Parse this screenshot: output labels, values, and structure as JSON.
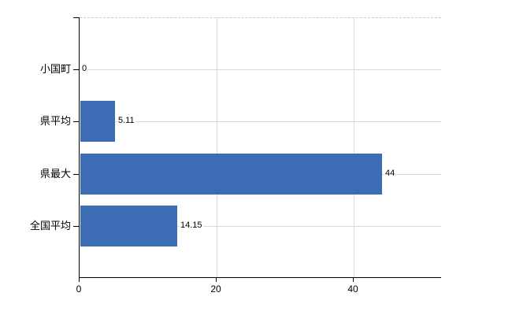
{
  "chart_data": {
    "type": "bar",
    "orientation": "horizontal",
    "title": "",
    "xlabel": "",
    "ylabel": "",
    "legend": null,
    "grid": true,
    "categories": [
      "小国町",
      "県平均",
      "県最大",
      "全国平均"
    ],
    "values": [
      0,
      5.11,
      44,
      14.15
    ],
    "value_labels": [
      "0",
      "5.11",
      "44",
      "14.15"
    ],
    "x_ticks": [
      0,
      20,
      40
    ],
    "x_tick_labels": [
      "0",
      "20",
      "40"
    ],
    "xlim": [
      0,
      52.6
    ],
    "bar_color": "#3c6cb3",
    "h_gridline_color": "#d7dad6",
    "v_gridline_color": "#d9d9d9",
    "top_border_color": "#c9c9c9",
    "axis_color": "#000000",
    "text_color": "#000000"
  }
}
